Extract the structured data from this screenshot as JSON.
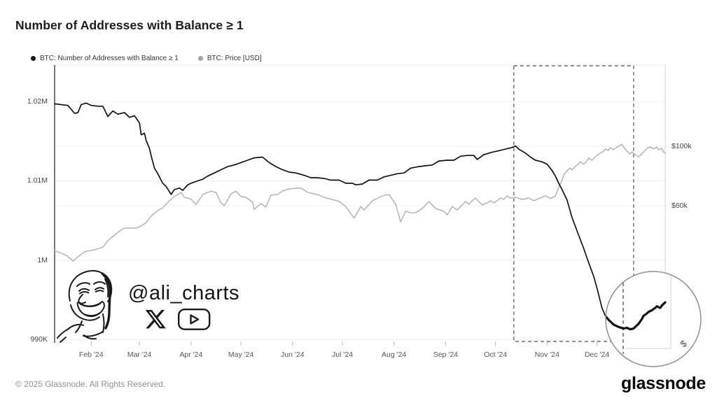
{
  "page": {
    "title": "Number of Addresses with Balance ≥ 1"
  },
  "legend": {
    "items": [
      {
        "label": "BTC: Number of Addresses with Balance ≥ 1",
        "marker_color": "#111111"
      },
      {
        "label": "BTC: Price [USD]",
        "marker_color": "#a3a3a3"
      }
    ]
  },
  "watermark": {
    "handle": "@ali_charts",
    "icons": [
      "x-logo",
      "youtube-logo"
    ]
  },
  "footer": {
    "copyright": "© 2025 Glassnode. All Rights Reserved.",
    "brand": "glassnode"
  },
  "chart_data": {
    "type": "line",
    "title": "Number of Addresses with Balance ≥ 1",
    "x_range": [
      "2024-01-10",
      "2025-01-11"
    ],
    "grid": "horizontal-faint",
    "legend_position": "top-left",
    "x_ticks": [
      {
        "label": "Feb '24",
        "date": "2024-02-01"
      },
      {
        "label": "Mar '24",
        "date": "2024-03-01"
      },
      {
        "label": "Apr '24",
        "date": "2024-04-01"
      },
      {
        "label": "May '24",
        "date": "2024-05-01"
      },
      {
        "label": "Jun '24",
        "date": "2024-06-01"
      },
      {
        "label": "Jul '24",
        "date": "2024-07-01"
      },
      {
        "label": "Aug '24",
        "date": "2024-08-01"
      },
      {
        "label": "Sep '24",
        "date": "2024-09-01"
      },
      {
        "label": "Oct '24",
        "date": "2024-10-01"
      },
      {
        "label": "Nov '24",
        "date": "2024-11-01"
      },
      {
        "label": "Dec '24",
        "date": "2024-12-01"
      }
    ],
    "left_axis": {
      "title": "Addresses",
      "scale": "linear",
      "ticks": [
        "1.02M",
        "1.01M",
        "1M",
        "990K"
      ],
      "tick_values": [
        1020000,
        1010000,
        1000000,
        990000
      ]
    },
    "right_axis": {
      "title": "BTC Price",
      "scale": "log",
      "ticks": [
        "$100k",
        "$60k"
      ],
      "tick_values": [
        100000,
        60000
      ],
      "symbol": "$"
    },
    "annotations": {
      "highlight_box": {
        "from": "2024-10-12",
        "to": "2024-12-23",
        "style": "dashed"
      },
      "magnifier": {
        "focus": "Dec '24 address-count dip and recovery",
        "from": "2024-12-04"
      }
    },
    "series": [
      {
        "name": "BTC: Number of Addresses with Balance ≥ 1",
        "axis": "left",
        "unit": "addresses (millions)",
        "color": "#111111",
        "points": [
          [
            "2024-01-10",
            1.0197
          ],
          [
            "2024-01-18",
            1.0195
          ],
          [
            "2024-01-22",
            1.0185
          ],
          [
            "2024-01-24",
            1.0186
          ],
          [
            "2024-01-26",
            1.0196
          ],
          [
            "2024-01-29",
            1.0198
          ],
          [
            "2024-02-01",
            1.0195
          ],
          [
            "2024-02-05",
            1.0194
          ],
          [
            "2024-02-08",
            1.0194
          ],
          [
            "2024-02-11",
            1.0181
          ],
          [
            "2024-02-14",
            1.0188
          ],
          [
            "2024-02-17",
            1.0184
          ],
          [
            "2024-02-21",
            1.0186
          ],
          [
            "2024-02-24",
            1.018
          ],
          [
            "2024-02-27",
            1.0182
          ],
          [
            "2024-03-01",
            1.0173
          ],
          [
            "2024-03-02",
            1.0158
          ],
          [
            "2024-03-04",
            1.016
          ],
          [
            "2024-03-05",
            1.0151
          ],
          [
            "2024-03-07",
            1.0141
          ],
          [
            "2024-03-08",
            1.0132
          ],
          [
            "2024-03-10",
            1.0116
          ],
          [
            "2024-03-12",
            1.0109
          ],
          [
            "2024-03-15",
            1.0097
          ],
          [
            "2024-03-17",
            1.0093
          ],
          [
            "2024-03-20",
            1.0083
          ],
          [
            "2024-03-22",
            1.0089
          ],
          [
            "2024-03-25",
            1.0091
          ],
          [
            "2024-03-27",
            1.0088
          ],
          [
            "2024-03-30",
            1.0095
          ],
          [
            "2024-04-01",
            1.0097
          ],
          [
            "2024-04-05",
            1.01
          ],
          [
            "2024-04-08",
            1.0102
          ],
          [
            "2024-04-11",
            1.0106
          ],
          [
            "2024-04-15",
            1.011
          ],
          [
            "2024-04-19",
            1.0114
          ],
          [
            "2024-04-23",
            1.0118
          ],
          [
            "2024-04-27",
            1.012
          ],
          [
            "2024-05-01",
            1.0123
          ],
          [
            "2024-05-05",
            1.0126
          ],
          [
            "2024-05-09",
            1.0129
          ],
          [
            "2024-05-14",
            1.013
          ],
          [
            "2024-05-18",
            1.0123
          ],
          [
            "2024-05-22",
            1.0118
          ],
          [
            "2024-05-26",
            1.0114
          ],
          [
            "2024-05-30",
            1.0111
          ],
          [
            "2024-06-03",
            1.011
          ],
          [
            "2024-06-08",
            1.0107
          ],
          [
            "2024-06-12",
            1.0104
          ],
          [
            "2024-06-16",
            1.0104
          ],
          [
            "2024-06-20",
            1.0103
          ],
          [
            "2024-06-24",
            1.0101
          ],
          [
            "2024-06-29",
            1.0101
          ],
          [
            "2024-07-03",
            1.0097
          ],
          [
            "2024-07-07",
            1.0097
          ],
          [
            "2024-07-09",
            1.0095
          ],
          [
            "2024-07-13",
            1.0096
          ],
          [
            "2024-07-17",
            1.0101
          ],
          [
            "2024-07-22",
            1.0101
          ],
          [
            "2024-07-26",
            1.0105
          ],
          [
            "2024-07-30",
            1.0107
          ],
          [
            "2024-08-03",
            1.0109
          ],
          [
            "2024-08-07",
            1.011
          ],
          [
            "2024-08-11",
            1.0116
          ],
          [
            "2024-08-16",
            1.0118
          ],
          [
            "2024-08-20",
            1.0119
          ],
          [
            "2024-08-24",
            1.012
          ],
          [
            "2024-08-28",
            1.0125
          ],
          [
            "2024-09-02",
            1.0126
          ],
          [
            "2024-09-06",
            1.0126
          ],
          [
            "2024-09-10",
            1.0131
          ],
          [
            "2024-09-14",
            1.0132
          ],
          [
            "2024-09-18",
            1.0132
          ],
          [
            "2024-09-20",
            1.0127
          ],
          [
            "2024-09-24",
            1.0133
          ],
          [
            "2024-09-29",
            1.0136
          ],
          [
            "2024-10-03",
            1.0138
          ],
          [
            "2024-10-07",
            1.014
          ],
          [
            "2024-10-11",
            1.0142
          ],
          [
            "2024-10-13",
            1.0144
          ],
          [
            "2024-10-15",
            1.014
          ],
          [
            "2024-10-19",
            1.0135
          ],
          [
            "2024-10-22",
            1.013
          ],
          [
            "2024-10-25",
            1.0126
          ],
          [
            "2024-10-29",
            1.0124
          ],
          [
            "2024-11-01",
            1.0121
          ],
          [
            "2024-11-04",
            1.0113
          ],
          [
            "2024-11-06",
            1.0106
          ],
          [
            "2024-11-08",
            1.0097
          ],
          [
            "2024-11-10",
            1.0089
          ],
          [
            "2024-11-13",
            1.0076
          ],
          [
            "2024-11-16",
            1.0054
          ],
          [
            "2024-11-19",
            1.0037
          ],
          [
            "2024-11-23",
            1.0015
          ],
          [
            "2024-11-26",
            0.9997
          ],
          [
            "2024-11-29",
            0.998
          ],
          [
            "2024-12-01",
            0.9965
          ],
          [
            "2024-12-04",
            0.994
          ],
          [
            "2024-12-06",
            0.993
          ],
          [
            "2024-12-08",
            0.9925
          ],
          [
            "2024-12-11",
            0.9919
          ],
          [
            "2024-12-14",
            0.9916
          ],
          [
            "2024-12-17",
            0.9914
          ],
          [
            "2024-12-19",
            0.9915
          ],
          [
            "2024-12-21",
            0.9913
          ],
          [
            "2024-12-23",
            0.9914
          ],
          [
            "2024-12-24",
            0.9916
          ],
          [
            "2024-12-26",
            0.992
          ],
          [
            "2024-12-28",
            0.9926
          ],
          [
            "2024-12-29",
            0.993
          ],
          [
            "2024-12-31",
            0.9933
          ],
          [
            "2025-01-01",
            0.9935
          ],
          [
            "2025-01-03",
            0.9937
          ],
          [
            "2025-01-05",
            0.994
          ],
          [
            "2025-01-06",
            0.9942
          ],
          [
            "2025-01-08",
            0.994
          ],
          [
            "2025-01-09",
            0.9943
          ],
          [
            "2025-01-11",
            0.9947
          ]
        ]
      },
      {
        "name": "BTC: Price [USD]",
        "axis": "right",
        "unit": "USD",
        "color": "#b3b3b3",
        "points": [
          [
            "2024-01-10",
            40800
          ],
          [
            "2024-01-17",
            39200
          ],
          [
            "2024-01-21",
            37300
          ],
          [
            "2024-01-25",
            39100
          ],
          [
            "2024-01-28",
            40400
          ],
          [
            "2024-02-03",
            41100
          ],
          [
            "2024-02-08",
            42000
          ],
          [
            "2024-02-11",
            44400
          ],
          [
            "2024-02-15",
            46600
          ],
          [
            "2024-02-18",
            48300
          ],
          [
            "2024-02-21",
            49500
          ],
          [
            "2024-02-25",
            49500
          ],
          [
            "2024-02-28",
            49500
          ],
          [
            "2024-03-02",
            50400
          ],
          [
            "2024-03-05",
            51900
          ],
          [
            "2024-03-08",
            54800
          ],
          [
            "2024-03-12",
            57500
          ],
          [
            "2024-03-15",
            58900
          ],
          [
            "2024-03-19",
            62600
          ],
          [
            "2024-03-22",
            64900
          ],
          [
            "2024-03-26",
            67200
          ],
          [
            "2024-03-28",
            64500
          ],
          [
            "2024-04-01",
            63500
          ],
          [
            "2024-04-04",
            60700
          ],
          [
            "2024-04-08",
            66000
          ],
          [
            "2024-04-13",
            68000
          ],
          [
            "2024-04-16",
            67200
          ],
          [
            "2024-04-19",
            61500
          ],
          [
            "2024-04-21",
            60000
          ],
          [
            "2024-04-25",
            66400
          ],
          [
            "2024-04-28",
            68000
          ],
          [
            "2024-05-01",
            64900
          ],
          [
            "2024-05-04",
            64500
          ],
          [
            "2024-05-08",
            61800
          ],
          [
            "2024-05-09",
            58200
          ],
          [
            "2024-05-13",
            61100
          ],
          [
            "2024-05-16",
            59300
          ],
          [
            "2024-05-19",
            65700
          ],
          [
            "2024-05-23",
            66000
          ],
          [
            "2024-05-26",
            68100
          ],
          [
            "2024-05-30",
            69300
          ],
          [
            "2024-06-06",
            69900
          ],
          [
            "2024-06-10",
            67300
          ],
          [
            "2024-06-16",
            66000
          ],
          [
            "2024-06-21",
            64100
          ],
          [
            "2024-06-25",
            63300
          ],
          [
            "2024-06-29",
            62200
          ],
          [
            "2024-07-03",
            59600
          ],
          [
            "2024-07-08",
            53900
          ],
          [
            "2024-07-12",
            59600
          ],
          [
            "2024-07-14",
            57800
          ],
          [
            "2024-07-19",
            62600
          ],
          [
            "2024-07-25",
            65300
          ],
          [
            "2024-07-29",
            66000
          ],
          [
            "2024-08-02",
            60700
          ],
          [
            "2024-08-05",
            52200
          ],
          [
            "2024-08-08",
            57200
          ],
          [
            "2024-08-11",
            56500
          ],
          [
            "2024-08-14",
            56500
          ],
          [
            "2024-08-18",
            58600
          ],
          [
            "2024-08-22",
            62200
          ],
          [
            "2024-08-26",
            58600
          ],
          [
            "2024-08-31",
            57200
          ],
          [
            "2024-09-02",
            55500
          ],
          [
            "2024-09-05",
            59600
          ],
          [
            "2024-09-08",
            57800
          ],
          [
            "2024-09-11",
            60400
          ],
          [
            "2024-09-13",
            62200
          ],
          [
            "2024-09-15",
            60700
          ],
          [
            "2024-09-17",
            62600
          ],
          [
            "2024-09-19",
            64100
          ],
          [
            "2024-09-21",
            62200
          ],
          [
            "2024-09-23",
            60400
          ],
          [
            "2024-09-26",
            61500
          ],
          [
            "2024-09-28",
            62600
          ],
          [
            "2024-09-30",
            61500
          ],
          [
            "2024-10-02",
            62600
          ],
          [
            "2024-10-04",
            64100
          ],
          [
            "2024-10-06",
            63300
          ],
          [
            "2024-10-08",
            65300
          ],
          [
            "2024-10-10",
            64100
          ],
          [
            "2024-10-13",
            64500
          ],
          [
            "2024-10-17",
            63300
          ],
          [
            "2024-10-21",
            64100
          ],
          [
            "2024-10-24",
            62600
          ],
          [
            "2024-10-27",
            63800
          ],
          [
            "2024-10-31",
            65300
          ],
          [
            "2024-11-03",
            63800
          ],
          [
            "2024-11-06",
            65300
          ],
          [
            "2024-11-08",
            70200
          ],
          [
            "2024-11-10",
            74500
          ],
          [
            "2024-11-11",
            78100
          ],
          [
            "2024-11-13",
            81000
          ],
          [
            "2024-11-15",
            83000
          ],
          [
            "2024-11-16",
            81500
          ],
          [
            "2024-11-18",
            84000
          ],
          [
            "2024-11-20",
            86100
          ],
          [
            "2024-11-21",
            87700
          ],
          [
            "2024-11-23",
            85600
          ],
          [
            "2024-11-25",
            88200
          ],
          [
            "2024-11-26",
            90300
          ],
          [
            "2024-11-28",
            88700
          ],
          [
            "2024-11-30",
            91400
          ],
          [
            "2024-12-01",
            92500
          ],
          [
            "2024-12-03",
            94200
          ],
          [
            "2024-12-05",
            95800
          ],
          [
            "2024-12-06",
            97600
          ],
          [
            "2024-12-08",
            96500
          ],
          [
            "2024-12-09",
            98800
          ],
          [
            "2024-12-11",
            97100
          ],
          [
            "2024-12-12",
            98200
          ],
          [
            "2024-12-14",
            100000
          ],
          [
            "2024-12-16",
            101800
          ],
          [
            "2024-12-17",
            99400
          ],
          [
            "2024-12-19",
            95800
          ],
          [
            "2024-12-21",
            93600
          ],
          [
            "2024-12-22",
            95300
          ],
          [
            "2024-12-24",
            93100
          ],
          [
            "2024-12-26",
            91400
          ],
          [
            "2024-12-28",
            93600
          ],
          [
            "2024-12-30",
            96500
          ],
          [
            "2024-12-31",
            98200
          ],
          [
            "2025-01-02",
            99400
          ],
          [
            "2025-01-04",
            97600
          ],
          [
            "2025-01-06",
            99400
          ],
          [
            "2025-01-07",
            97100
          ],
          [
            "2025-01-09",
            98200
          ],
          [
            "2025-01-10",
            95300
          ],
          [
            "2025-01-11",
            94200
          ]
        ]
      }
    ]
  }
}
